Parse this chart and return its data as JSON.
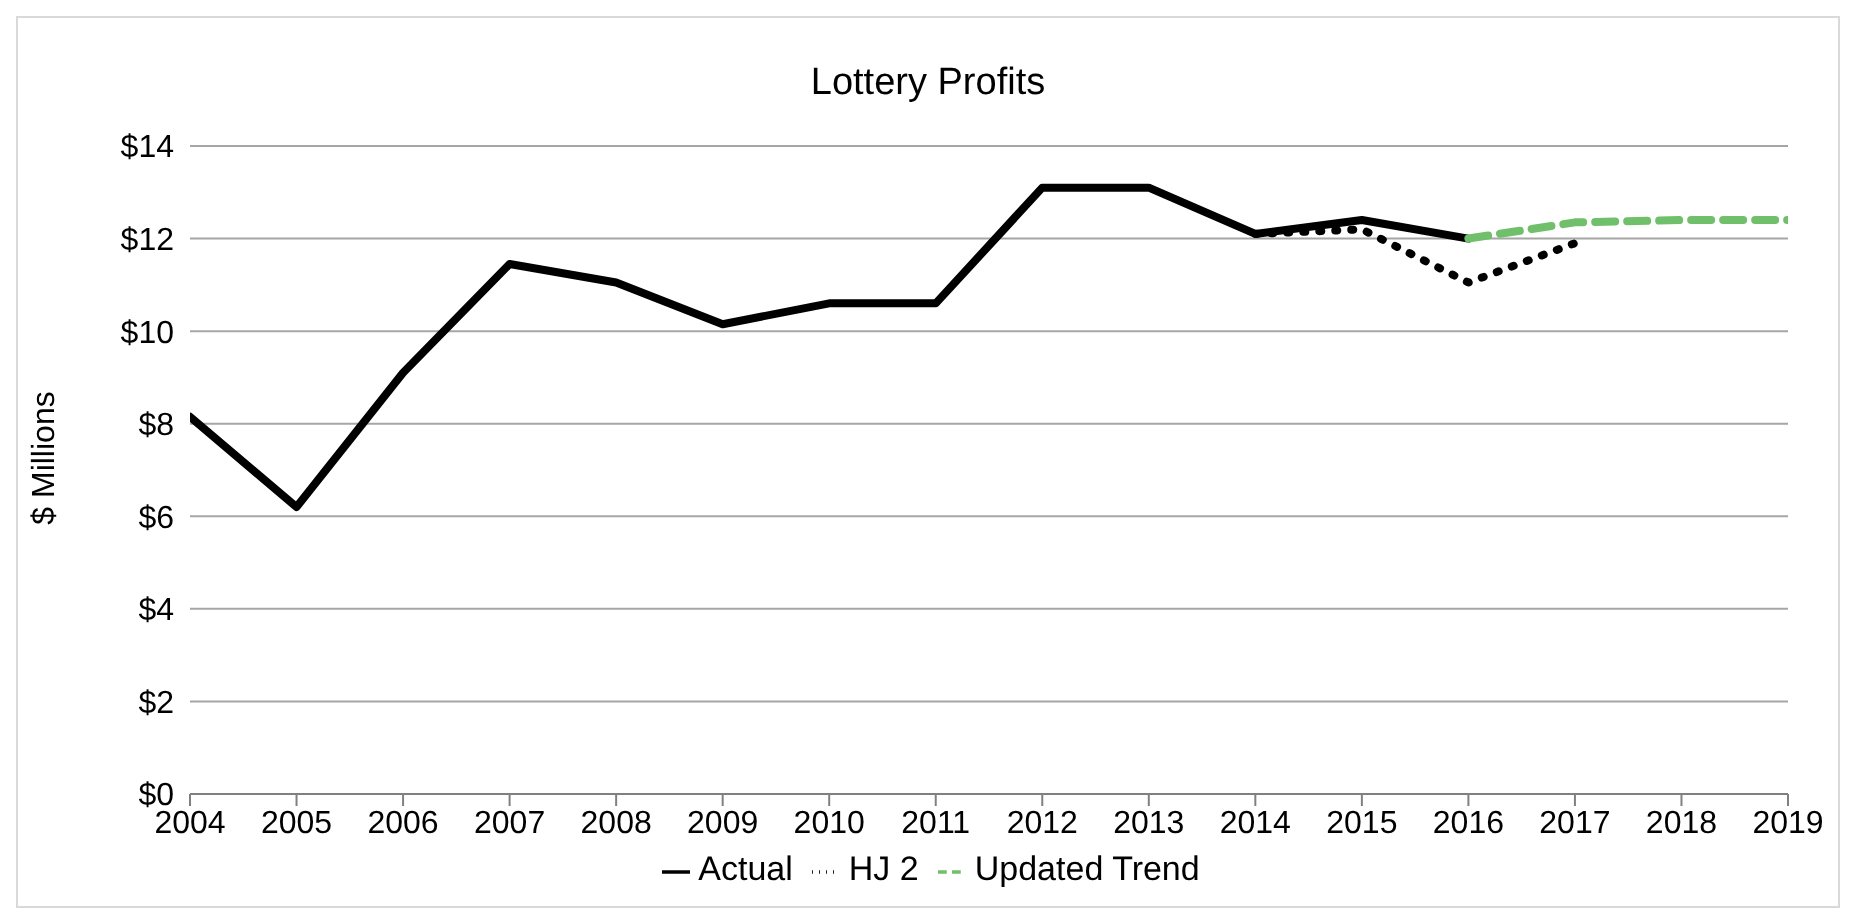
{
  "chart_data": {
    "type": "line",
    "title": "Lottery Profits",
    "ylabel": "$ Millions",
    "x": [
      2004,
      2005,
      2006,
      2007,
      2008,
      2009,
      2010,
      2011,
      2012,
      2013,
      2014,
      2015,
      2016,
      2017,
      2018,
      2019
    ],
    "xlim": [
      2004,
      2019
    ],
    "xticks": [
      2004,
      2005,
      2006,
      2007,
      2008,
      2009,
      2010,
      2011,
      2012,
      2013,
      2014,
      2015,
      2016,
      2017,
      2018,
      2019
    ],
    "ylim": [
      0,
      14
    ],
    "yticks": [
      {
        "value": 0,
        "label": "$0"
      },
      {
        "value": 2,
        "label": "$2"
      },
      {
        "value": 4,
        "label": "$4"
      },
      {
        "value": 6,
        "label": "$6"
      },
      {
        "value": 8,
        "label": "$8"
      },
      {
        "value": 10,
        "label": "$10"
      },
      {
        "value": 12,
        "label": "$12"
      },
      {
        "value": 14,
        "label": "$14"
      }
    ],
    "grid": "y",
    "legend": "bottom",
    "marker": "none",
    "series": [
      {
        "name": "Actual",
        "color": "#000000",
        "line_style": "solid",
        "values": [
          8.15,
          6.2,
          9.1,
          11.45,
          11.05,
          10.15,
          10.6,
          10.6,
          13.1,
          13.1,
          12.1,
          12.4,
          12.0,
          null,
          null,
          null
        ]
      },
      {
        "name": "HJ 2",
        "color": "#000000",
        "line_style": "dotted",
        "values": [
          null,
          null,
          null,
          null,
          null,
          null,
          null,
          null,
          null,
          null,
          12.1,
          12.2,
          11.05,
          11.9,
          null,
          null
        ]
      },
      {
        "name": "Updated Trend",
        "color": "#70bf6b",
        "line_style": "dashed",
        "values": [
          null,
          null,
          null,
          null,
          null,
          null,
          null,
          null,
          null,
          null,
          null,
          null,
          12.0,
          12.35,
          12.4,
          12.4
        ]
      }
    ]
  }
}
